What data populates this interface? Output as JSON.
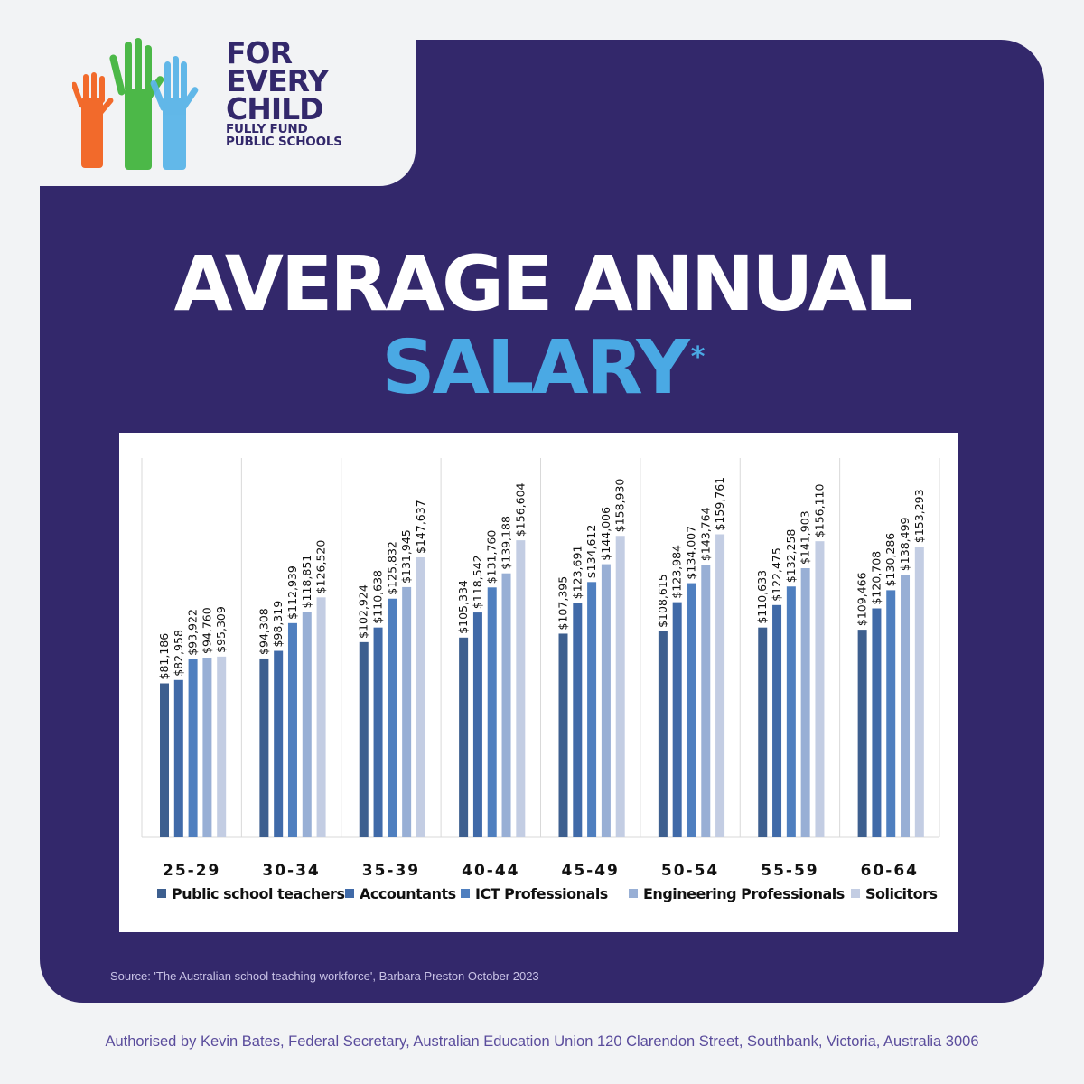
{
  "brand": {
    "line1": "FOR",
    "line2": "EVERY",
    "line3": "CHILD",
    "tagline1": "FULLY FUND",
    "tagline2": "PUBLIC SCHOOLS",
    "colors": {
      "orange": "#f26a2b",
      "green": "#4cb848",
      "blue": "#5ab4e8",
      "navy": "#33286b"
    }
  },
  "title": {
    "line1": "AVERAGE ANNUAL",
    "line2": "SALARY",
    "asterisk": "*"
  },
  "chart_data": {
    "type": "bar",
    "categories": [
      "25-29",
      "30-34",
      "35-39",
      "40-44",
      "45-49",
      "50-54",
      "55-59",
      "60-64"
    ],
    "series": [
      {
        "name": "Public school teachers",
        "color": "#3d5f8f",
        "values": [
          81186,
          94308,
          102924,
          105334,
          107395,
          108615,
          110633,
          109466
        ],
        "labels": [
          "$81,186",
          "$94,308",
          "$102,924",
          "$105,334",
          "$107,395",
          "$108,615",
          "$110,633",
          "$109,466"
        ]
      },
      {
        "name": "Accountants",
        "color": "#406aa8",
        "values": [
          82958,
          98319,
          110638,
          118542,
          123691,
          123984,
          122475,
          120708
        ],
        "labels": [
          "$82,958",
          "$98,319",
          "$110,638",
          "$118,542",
          "$123,691",
          "$123,984",
          "$122,475",
          "$120,708"
        ]
      },
      {
        "name": "ICT Professionals",
        "color": "#4f7fbf",
        "values": [
          93922,
          112939,
          125832,
          131760,
          134612,
          134007,
          132258,
          130286
        ],
        "labels": [
          "$93,922",
          "$112,939",
          "$125,832",
          "$131,760",
          "$134,612",
          "$134,007",
          "$132,258",
          "$130,286"
        ]
      },
      {
        "name": "Engineering Professionals",
        "color": "#98afd5",
        "values": [
          94760,
          118851,
          131945,
          139188,
          144006,
          143764,
          141903,
          138499
        ],
        "labels": [
          "$94,760",
          "$118,851",
          "$131,945",
          "$139,188",
          "$144,006",
          "$143,764",
          "$141,903",
          "$138,499"
        ]
      },
      {
        "name": "Solicitors",
        "color": "#c3cde3",
        "values": [
          95309,
          126520,
          147637,
          156604,
          158930,
          159761,
          156110,
          153293
        ],
        "labels": [
          "$95,309",
          "$126,520",
          "$147,637",
          "$156,604",
          "$158,930",
          "$159,761",
          "$156,110",
          "$153,293"
        ]
      }
    ],
    "ylim": [
      0,
      200000
    ],
    "grid": false,
    "legend": "bottom"
  },
  "source": "Source: 'The Australian school teaching workforce', Barbara Preston October 2023",
  "authorised": "Authorised by Kevin Bates, Federal Secretary, Australian Education Union 120 Clarendon Street, Southbank, Victoria, Australia 3006"
}
